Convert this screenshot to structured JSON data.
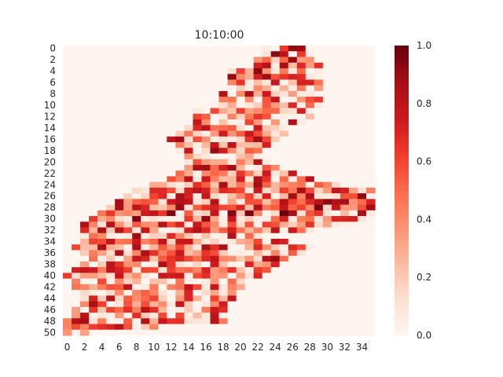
{
  "chart_data": {
    "type": "heatmap",
    "title": "10:10:00",
    "xlabel": "",
    "ylabel": "",
    "n_rows": 51,
    "n_cols": 36,
    "x_tick_labels": [
      "0",
      "2",
      "4",
      "6",
      "8",
      "10",
      "12",
      "14",
      "16",
      "18",
      "20",
      "22",
      "24",
      "26",
      "28",
      "30",
      "32",
      "34"
    ],
    "y_tick_labels": [
      "0",
      "2",
      "4",
      "6",
      "8",
      "10",
      "12",
      "14",
      "16",
      "18",
      "20",
      "22",
      "24",
      "26",
      "28",
      "30",
      "32",
      "34",
      "36",
      "38",
      "40",
      "42",
      "44",
      "46",
      "48",
      "50"
    ],
    "colorbar": {
      "vmin": 0.0,
      "vmax": 1.0,
      "tick_labels": [
        "0.0",
        "0.2",
        "0.4",
        "0.6",
        "0.8",
        "1.0"
      ],
      "colormap": "Reds"
    },
    "seed": 1010,
    "activity_shape": [
      {
        "row": 0,
        "from": 23,
        "to": 27,
        "mean": 0.55
      },
      {
        "row": 2,
        "from": 22,
        "to": 28,
        "mean": 0.5
      },
      {
        "row": 4,
        "from": 19,
        "to": 29,
        "mean": 0.5
      },
      {
        "row": 7,
        "from": 19,
        "to": 29,
        "mean": 0.45
      },
      {
        "row": 10,
        "from": 16,
        "to": 29,
        "mean": 0.35
      },
      {
        "row": 13,
        "from": 14,
        "to": 27,
        "mean": 0.4
      },
      {
        "row": 16,
        "from": 12,
        "to": 24,
        "mean": 0.45
      },
      {
        "row": 19,
        "from": 14,
        "to": 22,
        "mean": 0.45
      },
      {
        "row": 21,
        "from": 14,
        "to": 24,
        "mean": 0.45
      },
      {
        "row": 23,
        "from": 12,
        "to": 28,
        "mean": 0.45
      },
      {
        "row": 25,
        "from": 8,
        "to": 35,
        "mean": 0.45
      },
      {
        "row": 27,
        "from": 6,
        "to": 35,
        "mean": 0.5
      },
      {
        "row": 29,
        "from": 4,
        "to": 35,
        "mean": 0.55
      },
      {
        "row": 31,
        "from": 2,
        "to": 33,
        "mean": 0.45
      },
      {
        "row": 33,
        "from": 2,
        "to": 22,
        "mean": 0.45
      },
      {
        "row": 35,
        "from": 1,
        "to": 28,
        "mean": 0.45
      },
      {
        "row": 37,
        "from": 2,
        "to": 25,
        "mean": 0.45
      },
      {
        "row": 40,
        "from": 0,
        "to": 22,
        "mean": 0.35
      },
      {
        "row": 43,
        "from": 2,
        "to": 19,
        "mean": 0.35
      },
      {
        "row": 46,
        "from": 1,
        "to": 18,
        "mean": 0.45
      },
      {
        "row": 48,
        "from": 0,
        "to": 18,
        "mean": 0.5
      },
      {
        "row": 50,
        "from": 0,
        "to": 2,
        "mean": 0.65
      }
    ]
  }
}
